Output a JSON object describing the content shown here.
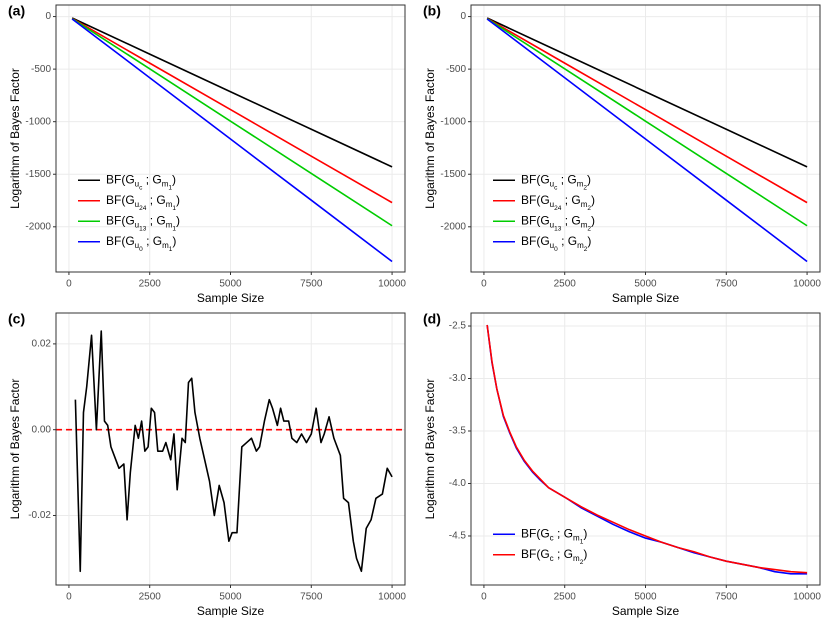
{
  "chart_data": [
    {
      "type": "line",
      "tag": "(a)",
      "xlabel": "Sample Size",
      "ylabel": "Logarithm of Bayes Factor",
      "x": [
        100,
        2500,
        5000,
        7500,
        10000
      ],
      "series": [
        {
          "name": "BF(G_{u_{c}} ; G_{m_{1}})",
          "color": "#000000",
          "values": [
            -14,
            -357,
            -715,
            -1072,
            -1430
          ]
        },
        {
          "name": "BF(G_{u_{24}} ; G_{m_{1}})",
          "color": "#ff0000",
          "values": [
            -18,
            -443,
            -885,
            -1328,
            -1770
          ]
        },
        {
          "name": "BF(G_{u_{13}} ; G_{m_{1}})",
          "color": "#00cc00",
          "values": [
            -20,
            -497,
            -995,
            -1492,
            -1990
          ]
        },
        {
          "name": "BF(G_{u_{0}} ; G_{m_{1}})",
          "color": "#0000ff",
          "values": [
            -23,
            -582,
            -1165,
            -1747,
            -2330
          ]
        }
      ],
      "xlim": [
        -400,
        10400
      ],
      "ylim": [
        -2430,
        110
      ],
      "xticks": [
        0,
        2500,
        5000,
        7500,
        10000
      ],
      "yticks": [
        -2000,
        -1500,
        -1000,
        -500,
        0
      ],
      "grid": true,
      "legend": "bottom-left"
    },
    {
      "type": "line",
      "tag": "(b)",
      "xlabel": "Sample Size",
      "ylabel": "Logarithm of Bayes Factor",
      "x": [
        100,
        2500,
        5000,
        7500,
        10000
      ],
      "series": [
        {
          "name": "BF(G_{u_{c}} ; G_{m_{2}})",
          "color": "#000000",
          "values": [
            -14,
            -357,
            -715,
            -1072,
            -1430
          ]
        },
        {
          "name": "BF(G_{u_{24}} ; G_{m_{2}})",
          "color": "#ff0000",
          "values": [
            -18,
            -443,
            -885,
            -1328,
            -1770
          ]
        },
        {
          "name": "BF(G_{u_{13}} ; G_{m_{2}})",
          "color": "#00cc00",
          "values": [
            -20,
            -497,
            -995,
            -1492,
            -1990
          ]
        },
        {
          "name": "BF(G_{u_{0}} ; G_{m_{2}})",
          "color": "#0000ff",
          "values": [
            -23,
            -582,
            -1165,
            -1747,
            -2330
          ]
        }
      ],
      "xlim": [
        -400,
        10400
      ],
      "ylim": [
        -2430,
        110
      ],
      "xticks": [
        0,
        2500,
        5000,
        7500,
        10000
      ],
      "yticks": [
        -2000,
        -1500,
        -1000,
        -500,
        0
      ],
      "grid": true,
      "legend": "bottom-left"
    },
    {
      "type": "line",
      "tag": "(c)",
      "xlabel": "Sample Size",
      "ylabel": "Logarithm of Bayes Factor",
      "x": [
        200,
        350,
        450,
        550,
        700,
        850,
        1000,
        1100,
        1200,
        1300,
        1400,
        1550,
        1700,
        1800,
        1900,
        2050,
        2150,
        2250,
        2350,
        2450,
        2550,
        2650,
        2750,
        2900,
        3000,
        3150,
        3250,
        3350,
        3500,
        3600,
        3700,
        3800,
        3900,
        4050,
        4200,
        4350,
        4500,
        4650,
        4800,
        4950,
        5050,
        5200,
        5350,
        5500,
        5650,
        5800,
        5900,
        6050,
        6200,
        6300,
        6450,
        6550,
        6650,
        6800,
        6900,
        7050,
        7200,
        7350,
        7500,
        7650,
        7800,
        7900,
        8050,
        8200,
        8400,
        8500,
        8650,
        8800,
        8900,
        9050,
        9200,
        9350,
        9500,
        9700,
        9850,
        10000
      ],
      "series": [
        {
          "color": "#000000",
          "values": [
            0.007,
            -0.033,
            0.004,
            0.01,
            0.022,
            0.0,
            0.023,
            0.002,
            0.001,
            -0.004,
            -0.006,
            -0.009,
            -0.008,
            -0.021,
            -0.01,
            0.001,
            -0.002,
            0.002,
            -0.005,
            -0.004,
            0.005,
            0.004,
            -0.005,
            -0.005,
            -0.003,
            -0.007,
            -0.001,
            -0.014,
            -0.002,
            -0.003,
            0.011,
            0.012,
            0.004,
            -0.002,
            -0.007,
            -0.012,
            -0.02,
            -0.013,
            -0.017,
            -0.026,
            -0.024,
            -0.024,
            -0.004,
            -0.003,
            -0.002,
            -0.005,
            -0.004,
            0.002,
            0.007,
            0.005,
            0.001,
            0.005,
            0.002,
            0.002,
            -0.002,
            -0.003,
            -0.001,
            -0.003,
            -0.001,
            0.005,
            -0.003,
            -0.001,
            0.003,
            -0.002,
            -0.006,
            -0.016,
            -0.017,
            -0.026,
            -0.03,
            -0.033,
            -0.023,
            -0.021,
            -0.016,
            -0.015,
            -0.009,
            -0.011
          ]
        }
      ],
      "hline": {
        "value": 0,
        "color": "#ff0000",
        "dashed": true
      },
      "xlim": [
        -400,
        10400
      ],
      "ylim": [
        -0.0362,
        0.0272
      ],
      "xticks": [
        0,
        2500,
        5000,
        7500,
        10000
      ],
      "yticks": [
        -0.02,
        {
          "value": 0,
          "label": "0.00"
        },
        0.02
      ],
      "grid": true
    },
    {
      "type": "line",
      "tag": "(d)",
      "xlabel": "Sample Size",
      "ylabel": "Logarithm of Bayes Factor",
      "x": [
        100,
        250,
        400,
        600,
        800,
        1000,
        1250,
        1500,
        1750,
        2000,
        2500,
        3000,
        3500,
        4000,
        4500,
        5000,
        5500,
        6000,
        6500,
        7000,
        7500,
        8000,
        8500,
        9000,
        9500,
        10000
      ],
      "series": [
        {
          "name": "BF(G_{c} ; G_{m_{1}})",
          "color": "#0000ff",
          "values": [
            -2.49,
            -2.85,
            -3.1,
            -3.36,
            -3.52,
            -3.66,
            -3.79,
            -3.89,
            -3.97,
            -4.04,
            -4.13,
            -4.23,
            -4.31,
            -4.39,
            -4.46,
            -4.52,
            -4.56,
            -4.61,
            -4.66,
            -4.7,
            -4.74,
            -4.77,
            -4.8,
            -4.84,
            -4.86,
            -4.86
          ]
        },
        {
          "name": "BF(G_{c} ; G_{m_{2}})",
          "color": "#ff0000",
          "values": [
            -2.49,
            -2.84,
            -3.1,
            -3.35,
            -3.51,
            -3.65,
            -3.78,
            -3.88,
            -3.96,
            -4.04,
            -4.13,
            -4.22,
            -4.3,
            -4.37,
            -4.44,
            -4.5,
            -4.56,
            -4.61,
            -4.65,
            -4.7,
            -4.74,
            -4.77,
            -4.8,
            -4.82,
            -4.84,
            -4.85
          ]
        }
      ],
      "xlim": [
        -400,
        10400
      ],
      "ylim": [
        -4.967,
        -2.376
      ],
      "xticks": [
        0,
        2500,
        5000,
        7500,
        10000
      ],
      "yticks": [
        {
          "value": -4.5,
          "label": "-4.5"
        },
        {
          "value": -4,
          "label": "-4.0"
        },
        {
          "value": -3.5,
          "label": "-3.5"
        },
        {
          "value": -3,
          "label": "-3.0"
        },
        {
          "value": -2.5,
          "label": "-2.5"
        }
      ],
      "grid": true,
      "legend": "bottom-left"
    }
  ]
}
